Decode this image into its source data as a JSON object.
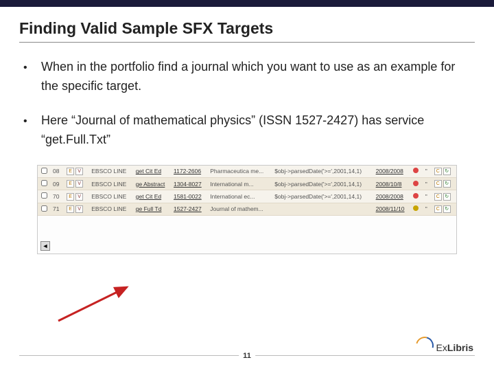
{
  "title": "Finding Valid Sample SFX Targets",
  "bullets": [
    "When in the portfolio find a journal which you want to use as an example for the specific target.",
    "Here “Journal of mathematical physics” (ISSN 1527-2427) has service “get.Full.Txt”"
  ],
  "table": {
    "rows": [
      {
        "id": "08",
        "target": "EBSCO LINE",
        "service": "get Cit Ed",
        "issn": "1172-2606",
        "journal": "Pharmaceutica me...",
        "threshold": "$obj->parsedDate('>=',2001,14,1)",
        "date": "2008/2008",
        "icon_color": "#d44"
      },
      {
        "id": "09",
        "target": "EBSCO LINE",
        "service": "ge Abstract",
        "issn": "1304-8027",
        "journal": "International m...",
        "threshold": "$obj->parsedDate('>=',2001,14,1)",
        "date": "2008/10/8",
        "icon_color": "#d44"
      },
      {
        "id": "70",
        "target": "EBSCO LINE",
        "service": "get Cit Ed",
        "issn": "1581-0022",
        "journal": "International ec...",
        "threshold": "$obj->parsedDate('>=',2001,14,1)",
        "date": "2008/2008",
        "icon_color": "#d44"
      },
      {
        "id": "71",
        "target": "EBSCO LINE",
        "service": "ge Full Td",
        "issn": "1527-2427",
        "journal": "Journal of mathem...",
        "threshold": "",
        "date": "2008/11/10",
        "icon_color": "#c7a400"
      }
    ]
  },
  "arrow_color": "#c62222",
  "page_number": "11",
  "logo_text_plain": "Ex",
  "logo_text_bold": "Libris"
}
